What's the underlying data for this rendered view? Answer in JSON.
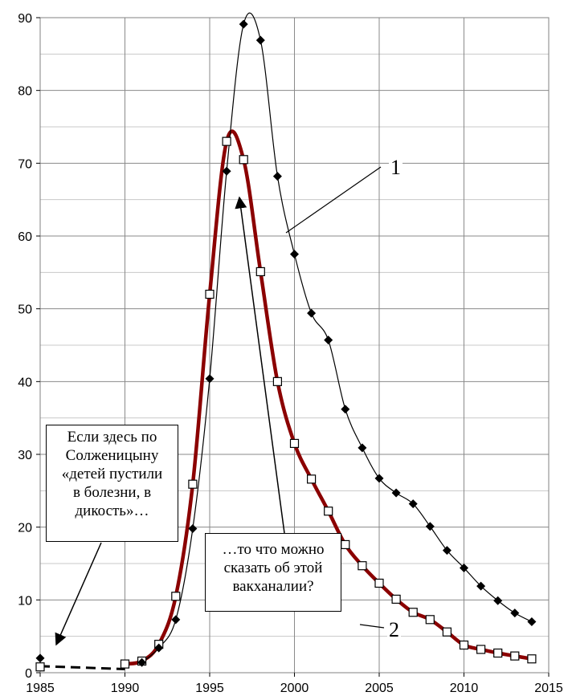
{
  "chart_data": {
    "type": "line",
    "xlim": [
      1985,
      2015
    ],
    "ylim": [
      0,
      90
    ],
    "x_ticks": [
      "1985",
      "1990",
      "1995",
      "2000",
      "2005",
      "2010",
      "2015"
    ],
    "y_ticks": [
      "0",
      "10",
      "20",
      "30",
      "40",
      "50",
      "60",
      "70",
      "80",
      "90"
    ],
    "grid": true,
    "series": [
      {
        "name": "1",
        "color": "#000000",
        "marker": "filled-diamond",
        "x": [
          1985,
          1991,
          1992,
          1993,
          1994,
          1995,
          1996,
          1997,
          1998,
          1999,
          2000,
          2001,
          2002,
          2003,
          2004,
          2005,
          2006,
          2007,
          2008,
          2009,
          2010,
          2011,
          2012,
          2013,
          2014
        ],
        "y": [
          2.0,
          1.4,
          3.4,
          7.3,
          19.8,
          40.4,
          68.9,
          89.1,
          86.9,
          68.2,
          57.5,
          49.4,
          45.7,
          36.2,
          30.9,
          26.7,
          24.7,
          23.2,
          20.1,
          16.8,
          14.4,
          11.9,
          9.9,
          8.2,
          7.0
        ]
      },
      {
        "name": "2",
        "color": "#8b0000",
        "marker": "open-square",
        "x": [
          1985,
          1990,
          1991,
          1992,
          1993,
          1994,
          1995,
          1996,
          1997,
          1998,
          1999,
          2000,
          2001,
          2002,
          2003,
          2004,
          2005,
          2006,
          2007,
          2008,
          2009,
          2010,
          2011,
          2012,
          2013,
          2014
        ],
        "y": [
          0.8,
          1.2,
          1.6,
          3.9,
          10.5,
          25.9,
          52.0,
          73.0,
          70.5,
          55.1,
          40.0,
          31.5,
          26.6,
          22.2,
          17.6,
          14.7,
          12.3,
          10.1,
          8.3,
          7.3,
          5.6,
          3.8,
          3.2,
          2.7,
          2.3,
          1.9
        ]
      }
    ],
    "dashed_link": {
      "x": [
        1985,
        1990
      ],
      "y": [
        0.9,
        0.5
      ]
    },
    "annotations": [
      {
        "id": "1",
        "text": "1"
      },
      {
        "id": "2",
        "text": "2"
      },
      {
        "id": "solzh",
        "lines": [
          "Если здесь по",
          "Солженицыну",
          "«детей пустили",
          "в болезни, в",
          "дикость»…"
        ]
      },
      {
        "id": "vakh",
        "lines": [
          "…то что можно",
          "сказать об этой",
          "вакханалии?"
        ]
      }
    ]
  }
}
